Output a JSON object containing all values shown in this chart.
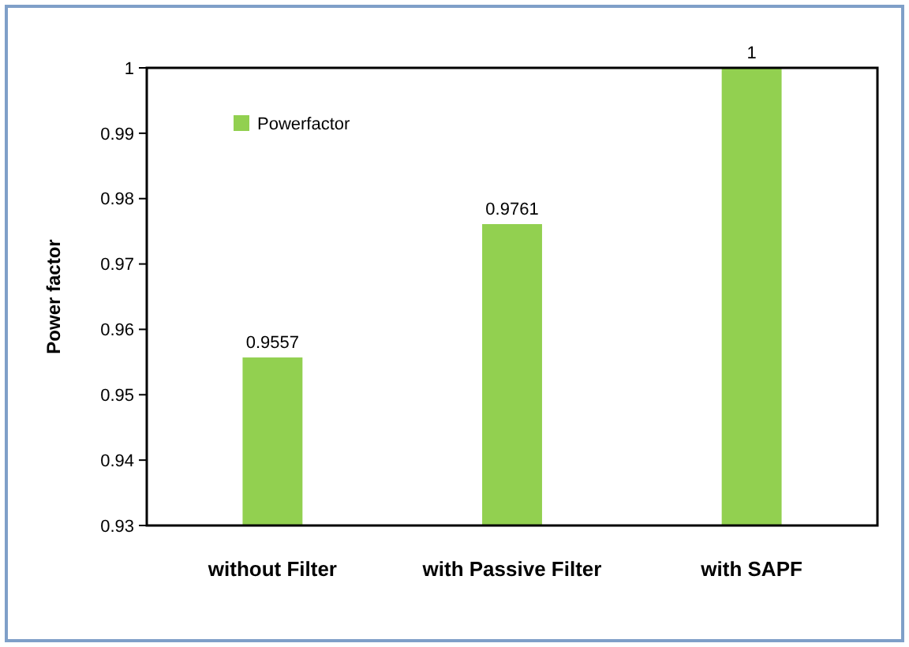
{
  "chart_data": {
    "type": "bar",
    "ylabel": "Power factor",
    "categories": [
      "without Filter",
      "with Passive Filter",
      "with SAPF"
    ],
    "series": [
      {
        "name": "Powerfactor",
        "color": "#92d050",
        "values": [
          0.9557,
          0.9761,
          1
        ]
      }
    ],
    "ylim": [
      0.93,
      1
    ],
    "yticks": [
      0.93,
      0.94,
      0.95,
      0.96,
      0.97,
      0.98,
      0.99,
      1
    ],
    "data_labels": true,
    "legend": "top left",
    "grid": false
  }
}
